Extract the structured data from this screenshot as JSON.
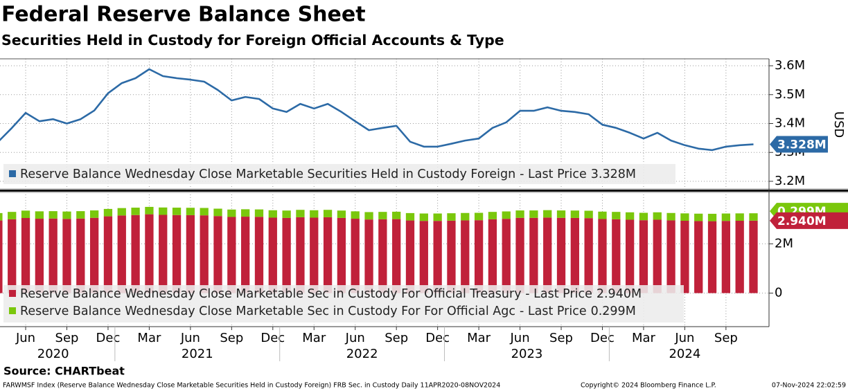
{
  "title": "Federal Reserve Balance Sheet",
  "subtitle": "Securities Held in Custody for Foreign Official Accounts & Type",
  "chart_data": [
    {
      "type": "line",
      "y_axis_label": "USD",
      "x": [
        "2020-04",
        "2020-05",
        "2020-06",
        "2020-07",
        "2020-08",
        "2020-09",
        "2020-10",
        "2020-11",
        "2020-12",
        "2021-01",
        "2021-02",
        "2021-03",
        "2021-04",
        "2021-05",
        "2021-06",
        "2021-07",
        "2021-08",
        "2021-09",
        "2021-10",
        "2021-11",
        "2021-12",
        "2022-01",
        "2022-02",
        "2022-03",
        "2022-04",
        "2022-05",
        "2022-06",
        "2022-07",
        "2022-08",
        "2022-09",
        "2022-10",
        "2022-11",
        "2022-12",
        "2023-01",
        "2023-02",
        "2023-03",
        "2023-04",
        "2023-05",
        "2023-06",
        "2023-07",
        "2023-08",
        "2023-09",
        "2023-10",
        "2023-11",
        "2023-12",
        "2024-01",
        "2024-02",
        "2024-03",
        "2024-04",
        "2024-05",
        "2024-06",
        "2024-07",
        "2024-08",
        "2024-09",
        "2024-10",
        "2024-11"
      ],
      "xlim": [
        "2020-04",
        "2024-11"
      ],
      "ylim": [
        3.176,
        3.624
      ],
      "yticks": [
        {
          "value": 3.2,
          "label": "3.2M"
        },
        {
          "value": 3.3,
          "label": "3.3M"
        },
        {
          "value": 3.4,
          "label": "3.4M"
        },
        {
          "value": 3.5,
          "label": "3.5M"
        },
        {
          "value": 3.6,
          "label": "3.6M"
        }
      ],
      "grid": true,
      "legend_suffix": "- Last Price",
      "series": [
        {
          "name": "Reserve Balance Wednesday Close Marketable Securities Held in Custody Foreign",
          "color": "#2c6aa6",
          "values": [
            3.337,
            3.385,
            3.437,
            3.408,
            3.415,
            3.4,
            3.415,
            3.445,
            3.505,
            3.54,
            3.557,
            3.588,
            3.564,
            3.557,
            3.552,
            3.545,
            3.516,
            3.48,
            3.492,
            3.485,
            3.452,
            3.44,
            3.468,
            3.452,
            3.468,
            3.44,
            3.408,
            3.377,
            3.385,
            3.392,
            3.337,
            3.32,
            3.32,
            3.33,
            3.341,
            3.348,
            3.385,
            3.404,
            3.444,
            3.444,
            3.456,
            3.444,
            3.44,
            3.432,
            3.396,
            3.385,
            3.368,
            3.348,
            3.368,
            3.341,
            3.325,
            3.313,
            3.308,
            3.32,
            3.325,
            3.328
          ],
          "value_labels": [
            null,
            null,
            null,
            null,
            null,
            null,
            null,
            null,
            null,
            null,
            null,
            null,
            null,
            null,
            null,
            null,
            null,
            null,
            null,
            null,
            null,
            null,
            null,
            null,
            null,
            null,
            null,
            null,
            null,
            null,
            null,
            null,
            null,
            null,
            null,
            null,
            null,
            null,
            null,
            null,
            null,
            null,
            null,
            null,
            null,
            null,
            null,
            null,
            null,
            null,
            null,
            null,
            null,
            null,
            null,
            "3.328M"
          ]
        }
      ]
    },
    {
      "type": "bar",
      "stacked": true,
      "x": [
        "2020-04",
        "2020-05",
        "2020-06",
        "2020-07",
        "2020-08",
        "2020-09",
        "2020-10",
        "2020-11",
        "2020-12",
        "2021-01",
        "2021-02",
        "2021-03",
        "2021-04",
        "2021-05",
        "2021-06",
        "2021-07",
        "2021-08",
        "2021-09",
        "2021-10",
        "2021-11",
        "2021-12",
        "2022-01",
        "2022-02",
        "2022-03",
        "2022-04",
        "2022-05",
        "2022-06",
        "2022-07",
        "2022-08",
        "2022-09",
        "2022-10",
        "2022-11",
        "2022-12",
        "2023-01",
        "2023-02",
        "2023-03",
        "2023-04",
        "2023-05",
        "2023-06",
        "2023-07",
        "2023-08",
        "2023-09",
        "2023-10",
        "2023-11",
        "2023-12",
        "2024-01",
        "2024-02",
        "2024-03",
        "2024-04",
        "2024-05",
        "2024-06",
        "2024-07",
        "2024-08",
        "2024-09",
        "2024-10",
        "2024-11"
      ],
      "xlim": [
        "2020-04",
        "2024-11"
      ],
      "xticks": [
        {
          "value": "2020-06",
          "label": "Jun"
        },
        {
          "value": "2020-09",
          "label": "Sep"
        },
        {
          "value": "2020-12",
          "label": "Dec"
        },
        {
          "value": "2021-03",
          "label": "Mar"
        },
        {
          "value": "2021-06",
          "label": "Jun"
        },
        {
          "value": "2021-09",
          "label": "Sep"
        },
        {
          "value": "2021-12",
          "label": "Dec"
        },
        {
          "value": "2022-03",
          "label": "Mar"
        },
        {
          "value": "2022-06",
          "label": "Jun"
        },
        {
          "value": "2022-09",
          "label": "Sep"
        },
        {
          "value": "2022-12",
          "label": "Dec"
        },
        {
          "value": "2023-03",
          "label": "Mar"
        },
        {
          "value": "2023-06",
          "label": "Jun"
        },
        {
          "value": "2023-09",
          "label": "Sep"
        },
        {
          "value": "2023-12",
          "label": "Dec"
        },
        {
          "value": "2024-03",
          "label": "Mar"
        },
        {
          "value": "2024-06",
          "label": "Jun"
        },
        {
          "value": "2024-09",
          "label": "Sep"
        }
      ],
      "year_labels": [
        2020,
        2021,
        2022,
        2023,
        2024
      ],
      "ylim": [
        -1.36,
        4.03
      ],
      "yticks": [
        0,
        {
          "value": 2,
          "label": "2M"
        }
      ],
      "grid": true,
      "legend_suffix": "- Last Price",
      "series": [
        {
          "name": "Reserve Balance Wednesday Close Marketable Sec in Custody For Official Treasury",
          "color": "#c0213a",
          "values": [
            2.947,
            2.995,
            3.047,
            3.018,
            3.025,
            3.01,
            3.025,
            3.055,
            3.115,
            3.15,
            3.167,
            3.198,
            3.174,
            3.167,
            3.162,
            3.155,
            3.126,
            3.09,
            3.102,
            3.095,
            3.062,
            3.05,
            3.078,
            3.062,
            3.078,
            3.05,
            3.018,
            2.987,
            2.995,
            3.002,
            2.947,
            2.93,
            2.93,
            2.94,
            2.951,
            2.958,
            2.995,
            3.014,
            3.054,
            3.054,
            3.066,
            3.054,
            3.05,
            3.042,
            3.006,
            2.995,
            2.978,
            2.958,
            2.978,
            2.951,
            2.935,
            2.923,
            2.918,
            2.93,
            2.935,
            2.94
          ],
          "value_labels": [
            null,
            null,
            null,
            null,
            null,
            null,
            null,
            null,
            null,
            null,
            null,
            null,
            null,
            null,
            null,
            null,
            null,
            null,
            null,
            null,
            null,
            null,
            null,
            null,
            null,
            null,
            null,
            null,
            null,
            null,
            null,
            null,
            null,
            null,
            null,
            null,
            null,
            null,
            null,
            null,
            null,
            null,
            null,
            null,
            null,
            null,
            null,
            null,
            null,
            null,
            null,
            null,
            null,
            null,
            null,
            "2.940M"
          ]
        },
        {
          "name": "Reserve Balance Wednesday Close Marketable Sec in Custody For For Official Agc",
          "color": "#7ac70c",
          "values": [
            0.3,
            0.3,
            0.3,
            0.3,
            0.3,
            0.3,
            0.3,
            0.3,
            0.3,
            0.3,
            0.3,
            0.3,
            0.3,
            0.3,
            0.3,
            0.3,
            0.3,
            0.3,
            0.3,
            0.3,
            0.3,
            0.3,
            0.3,
            0.3,
            0.3,
            0.3,
            0.3,
            0.3,
            0.3,
            0.3,
            0.3,
            0.3,
            0.3,
            0.3,
            0.3,
            0.3,
            0.3,
            0.3,
            0.3,
            0.3,
            0.3,
            0.3,
            0.3,
            0.3,
            0.3,
            0.3,
            0.3,
            0.3,
            0.3,
            0.3,
            0.3,
            0.3,
            0.3,
            0.3,
            0.3,
            0.299
          ],
          "value_labels": [
            null,
            null,
            null,
            null,
            null,
            null,
            null,
            null,
            null,
            null,
            null,
            null,
            null,
            null,
            null,
            null,
            null,
            null,
            null,
            null,
            null,
            null,
            null,
            null,
            null,
            null,
            null,
            null,
            null,
            null,
            null,
            null,
            null,
            null,
            null,
            null,
            null,
            null,
            null,
            null,
            null,
            null,
            null,
            null,
            null,
            null,
            null,
            null,
            null,
            null,
            null,
            null,
            null,
            null,
            null,
            "0.299M"
          ]
        }
      ]
    }
  ],
  "source": "Source: CHARTbeat",
  "footer": {
    "left": "FARWMSF Index (Reserve Balance Wednesday Close Marketable Securities Held in Custody Foreign) FRB Sec. in Custody  Daily 11APR2020-08NOV2024",
    "center": "Copyright© 2024 Bloomberg Finance L.P.",
    "right": "07-Nov-2024 22:02:59"
  }
}
